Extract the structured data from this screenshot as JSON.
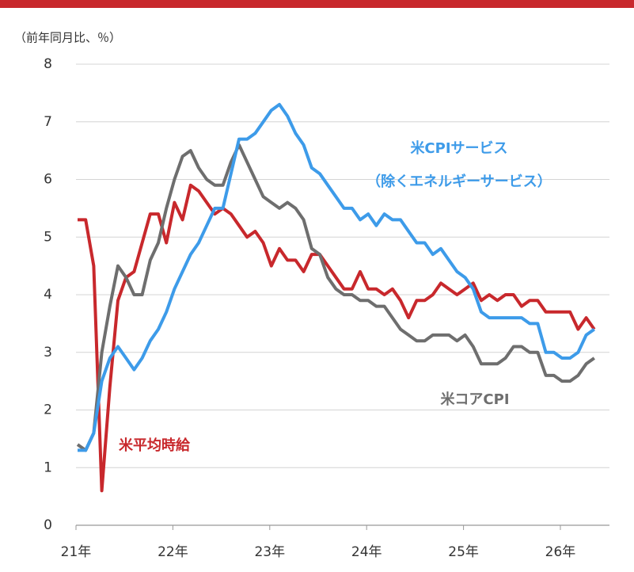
{
  "chart_data": {
    "type": "line",
    "y_axis_label": "（前年同月比、％）",
    "categories": [
      "21年",
      null,
      null,
      null,
      null,
      null,
      null,
      null,
      null,
      null,
      null,
      null,
      "22年",
      null,
      null,
      null,
      null,
      null,
      null,
      null,
      null,
      null,
      null,
      null,
      "23年",
      null,
      null,
      null,
      null,
      null,
      null,
      null,
      null,
      null,
      null,
      null,
      "24年",
      null,
      null,
      null,
      null,
      null,
      null,
      null,
      null,
      null,
      null,
      null,
      "25年",
      null,
      null,
      null,
      null,
      null,
      null,
      null,
      null,
      null,
      null,
      null,
      "26年",
      null,
      null,
      null,
      null
    ],
    "ylim": [
      0,
      8
    ],
    "yticks": [
      0,
      1,
      2,
      3,
      4,
      5,
      6,
      7,
      8
    ],
    "grid": true,
    "series": [
      {
        "name": "米平均時給",
        "color": "#c8282c",
        "values": [
          5.3,
          5.3,
          4.5,
          0.6,
          2.4,
          3.9,
          4.3,
          4.4,
          4.9,
          5.4,
          5.4,
          4.9,
          5.6,
          5.3,
          5.9,
          5.8,
          5.6,
          5.4,
          5.5,
          5.4,
          5.2,
          5.0,
          5.1,
          4.9,
          4.5,
          4.8,
          4.6,
          4.6,
          4.4,
          4.7,
          4.7,
          4.5,
          4.3,
          4.1,
          4.1,
          4.4,
          4.1,
          4.1,
          4.0,
          4.1,
          3.9,
          3.6,
          3.9,
          3.9,
          4.0,
          4.2,
          4.1,
          4.0,
          4.1,
          4.2,
          3.9,
          4.0,
          3.9,
          4.0,
          4.0,
          3.8,
          3.9,
          3.9,
          3.7,
          3.7,
          3.7,
          3.7,
          3.4,
          3.6,
          3.4
        ]
      },
      {
        "name": "米コアCPI",
        "color": "#6e6e6e",
        "values": [
          1.4,
          1.3,
          1.6,
          3.0,
          3.8,
          4.5,
          4.3,
          4.0,
          4.0,
          4.6,
          4.9,
          5.5,
          6.0,
          6.4,
          6.5,
          6.2,
          6.0,
          5.9,
          5.9,
          6.3,
          6.6,
          6.3,
          6.0,
          5.7,
          5.6,
          5.5,
          5.6,
          5.5,
          5.3,
          4.8,
          4.7,
          4.3,
          4.1,
          4.0,
          4.0,
          3.9,
          3.9,
          3.8,
          3.8,
          3.6,
          3.4,
          3.3,
          3.2,
          3.2,
          3.3,
          3.3,
          3.3,
          3.2,
          3.3,
          3.1,
          2.8,
          2.8,
          2.8,
          2.9,
          3.1,
          3.1,
          3.0,
          3.0,
          2.6,
          2.6,
          2.5,
          2.5,
          2.6,
          2.8,
          2.9
        ]
      },
      {
        "name": "米CPIサービス",
        "name_note": "（除くエネルギーサービス）",
        "color": "#3d9be9",
        "values": [
          1.3,
          1.3,
          1.6,
          2.5,
          2.9,
          3.1,
          2.9,
          2.7,
          2.9,
          3.2,
          3.4,
          3.7,
          4.1,
          4.4,
          4.7,
          4.9,
          5.2,
          5.5,
          5.5,
          6.1,
          6.7,
          6.7,
          6.8,
          7.0,
          7.2,
          7.3,
          7.1,
          6.8,
          6.6,
          6.2,
          6.1,
          5.9,
          5.7,
          5.5,
          5.5,
          5.3,
          5.4,
          5.2,
          5.4,
          5.3,
          5.3,
          5.1,
          4.9,
          4.9,
          4.7,
          4.8,
          4.6,
          4.4,
          4.3,
          4.1,
          3.7,
          3.6,
          3.6,
          3.6,
          3.6,
          3.6,
          3.5,
          3.5,
          3.0,
          3.0,
          2.9,
          2.9,
          3.0,
          3.3,
          3.4
        ]
      }
    ]
  }
}
